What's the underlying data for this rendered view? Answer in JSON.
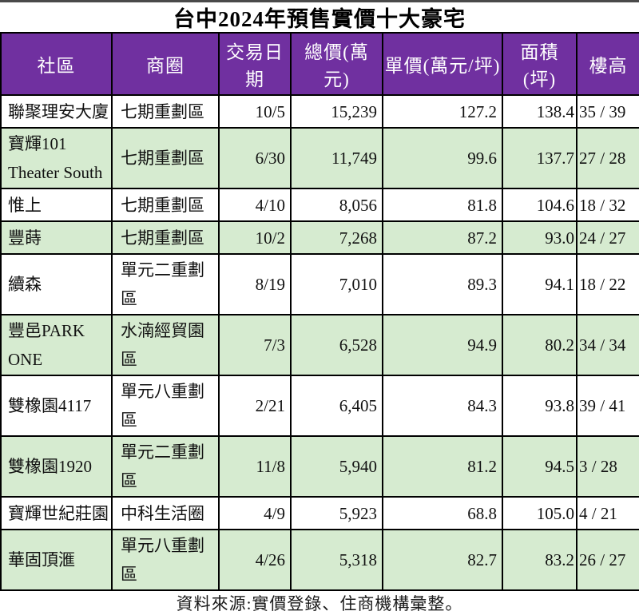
{
  "page": {
    "title": "台中2024年預售實價十大豪宅",
    "footnote": "資料來源:實價登錄、住商機構彙整。"
  },
  "chart_data": {
    "type": "table",
    "title": "台中2024年預售實價十大豪宅",
    "columns": [
      "社區",
      "商圈",
      "交易日期",
      "總價(萬元)",
      "單價(萬元/坪)",
      "面積(坪)",
      "樓高"
    ],
    "rows": [
      [
        "聯聚理安大廈",
        "七期重劃區",
        "10/5",
        "15,239",
        "127.2",
        "138.4",
        "35 / 39"
      ],
      [
        "寶輝101\nTheater South",
        "七期重劃區",
        "6/30",
        "11,749",
        "99.6",
        "137.7",
        "27 / 28"
      ],
      [
        "惟上",
        "七期重劃區",
        "4/10",
        "8,056",
        "81.8",
        "104.6",
        "18 / 32"
      ],
      [
        "豐蒔",
        "七期重劃區",
        "10/2",
        "7,268",
        "87.2",
        "93.0",
        "24 / 27"
      ],
      [
        "續森",
        "單元二重劃區",
        "8/19",
        "7,010",
        "89.3",
        "94.1",
        "18 / 22"
      ],
      [
        "豐邑PARK ONE",
        "水湳經貿園區",
        "7/3",
        "6,528",
        "94.9",
        "80.2",
        "34 / 34"
      ],
      [
        "雙橡園4117",
        "單元八重劃區",
        "2/21",
        "6,405",
        "84.3",
        "93.8",
        "39 / 41"
      ],
      [
        "雙橡園1920",
        "單元二重劃區",
        "11/8",
        "5,940",
        "81.2",
        "94.5",
        "3 / 28"
      ],
      [
        "寶輝世紀莊園",
        "中科生活圈",
        "4/9",
        "5,923",
        "68.8",
        "105.0",
        "4 / 21"
      ],
      [
        "華固頂滙",
        "單元八重劃區",
        "4/26",
        "5,318",
        "82.7",
        "83.2",
        "26 / 27"
      ]
    ],
    "footnote": "資料來源:實價登錄、住商機構彙整。",
    "colors": {
      "header_bg": "#7030A0",
      "header_text": "#FFFFFF",
      "row_even_bg": "#D6EBD0",
      "row_odd_bg": "#FFFFFF",
      "grid_border": "#000000"
    }
  }
}
